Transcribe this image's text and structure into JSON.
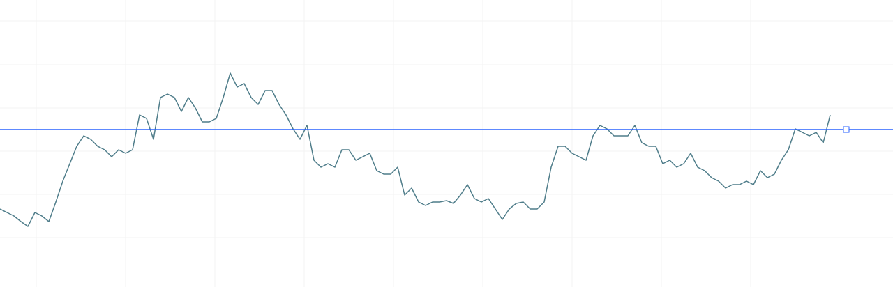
{
  "chart_data": {
    "type": "line",
    "ylim": [
      0,
      412
    ],
    "series": [
      {
        "color": "#4f7d8a",
        "values": [
          112,
          107,
          102,
          94,
          87,
          107,
          102,
          94,
          122,
          152,
          177,
          202,
          217,
          212,
          202,
          197,
          187,
          197,
          192,
          197,
          247,
          242,
          212,
          272,
          277,
          272,
          252,
          272,
          257,
          237,
          237,
          242,
          272,
          307,
          287,
          292,
          272,
          262,
          282,
          282,
          262,
          247,
          227,
          212,
          232,
          182,
          172,
          177,
          172,
          197,
          197,
          182,
          187,
          192,
          167,
          162,
          162,
          172,
          132,
          142,
          122,
          117,
          122,
          122,
          124,
          120,
          132,
          147,
          127,
          122,
          127,
          112,
          97,
          112,
          120,
          122,
          112,
          112,
          122,
          172,
          202,
          202,
          192,
          187,
          182,
          217,
          232,
          227,
          217,
          217,
          217,
          232,
          207,
          202,
          202,
          177,
          182,
          172,
          177,
          192,
          172,
          167,
          157,
          152,
          142,
          147,
          147,
          152,
          147,
          167,
          157,
          162,
          182,
          197,
          227,
          222,
          217,
          222,
          207,
          247
        ]
      }
    ],
    "hline": {
      "value": 226,
      "color": "#2962ff"
    }
  }
}
